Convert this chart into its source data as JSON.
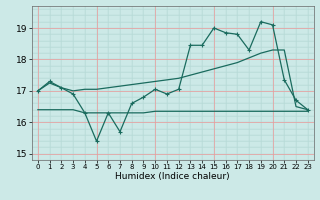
{
  "title": "",
  "xlabel": "Humidex (Indice chaleur)",
  "xlim": [
    -0.5,
    23.5
  ],
  "ylim": [
    14.8,
    19.7
  ],
  "yticks": [
    15,
    16,
    17,
    18,
    19
  ],
  "xticks": [
    0,
    1,
    2,
    3,
    4,
    5,
    6,
    7,
    8,
    9,
    10,
    11,
    12,
    13,
    14,
    15,
    16,
    17,
    18,
    19,
    20,
    21,
    22,
    23
  ],
  "bg_color": "#cce9e7",
  "line_color": "#1a6b5e",
  "grid_major_color": "#ffffff",
  "grid_minor_color": "#dff0ee",
  "line1_x": [
    0,
    1,
    2,
    3,
    4,
    5,
    6,
    7,
    8,
    9,
    10,
    11,
    12,
    13,
    14,
    15,
    16,
    17,
    18,
    19,
    20,
    21,
    22,
    23
  ],
  "line1_y": [
    17.0,
    17.25,
    17.1,
    17.0,
    17.05,
    17.05,
    17.1,
    17.15,
    17.2,
    17.25,
    17.3,
    17.35,
    17.4,
    17.5,
    17.6,
    17.7,
    17.8,
    17.9,
    18.05,
    18.2,
    18.3,
    18.3,
    16.5,
    16.4
  ],
  "line2_x": [
    0,
    1,
    2,
    3,
    4,
    5,
    6,
    7,
    8,
    9,
    10,
    11,
    12,
    13,
    14,
    15,
    16,
    17,
    18,
    19,
    20,
    21,
    22,
    23
  ],
  "line2_y": [
    17.0,
    17.3,
    17.1,
    16.9,
    16.3,
    15.4,
    16.3,
    15.7,
    16.6,
    16.8,
    17.05,
    16.9,
    17.05,
    18.45,
    18.45,
    19.0,
    18.85,
    18.8,
    18.3,
    19.2,
    19.1,
    17.35,
    16.7,
    16.4
  ],
  "line3_x": [
    0,
    1,
    2,
    3,
    4,
    5,
    6,
    7,
    8,
    9,
    10,
    11,
    12,
    13,
    14,
    15,
    16,
    17,
    18,
    19,
    20,
    21,
    22,
    23
  ],
  "line3_y": [
    16.4,
    16.4,
    16.4,
    16.4,
    16.3,
    16.3,
    16.3,
    16.3,
    16.3,
    16.3,
    16.35,
    16.35,
    16.35,
    16.35,
    16.35,
    16.35,
    16.35,
    16.35,
    16.35,
    16.35,
    16.35,
    16.35,
    16.35,
    16.35
  ]
}
